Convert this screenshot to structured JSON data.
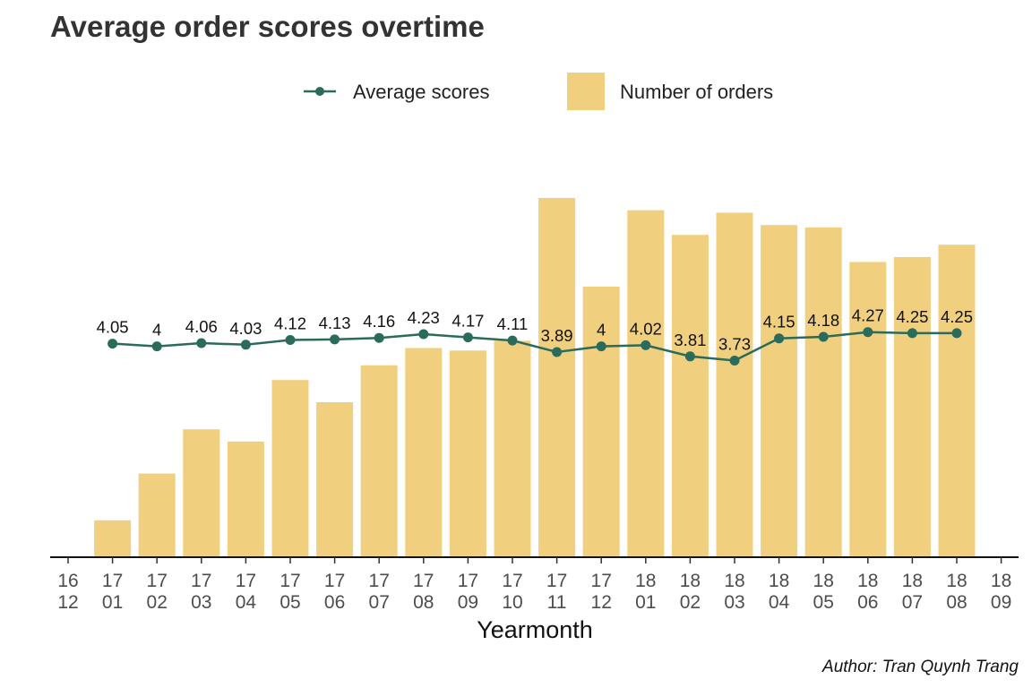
{
  "chart_data": {
    "type": "bar",
    "title": "Average order scores overtime",
    "xlabel": "Yearmonth",
    "ylabel": "",
    "caption": "Author: Tran Quynh Trang",
    "legend_position": "top",
    "grid": false,
    "x_ticks": [
      {
        "top": "16",
        "bottom": "12"
      },
      {
        "top": "17",
        "bottom": "01"
      },
      {
        "top": "17",
        "bottom": "02"
      },
      {
        "top": "17",
        "bottom": "03"
      },
      {
        "top": "17",
        "bottom": "04"
      },
      {
        "top": "17",
        "bottom": "05"
      },
      {
        "top": "17",
        "bottom": "06"
      },
      {
        "top": "17",
        "bottom": "07"
      },
      {
        "top": "17",
        "bottom": "08"
      },
      {
        "top": "17",
        "bottom": "09"
      },
      {
        "top": "17",
        "bottom": "10"
      },
      {
        "top": "17",
        "bottom": "11"
      },
      {
        "top": "17",
        "bottom": "12"
      },
      {
        "top": "18",
        "bottom": "01"
      },
      {
        "top": "18",
        "bottom": "02"
      },
      {
        "top": "18",
        "bottom": "03"
      },
      {
        "top": "18",
        "bottom": "04"
      },
      {
        "top": "18",
        "bottom": "05"
      },
      {
        "top": "18",
        "bottom": "06"
      },
      {
        "top": "18",
        "bottom": "07"
      },
      {
        "top": "18",
        "bottom": "08"
      },
      {
        "top": "18",
        "bottom": "09"
      }
    ],
    "categories": [
      "17 01",
      "17 02",
      "17 03",
      "17 04",
      "17 05",
      "17 06",
      "17 07",
      "17 08",
      "17 09",
      "17 10",
      "17 11",
      "17 12",
      "18 01",
      "18 02",
      "18 03",
      "18 04",
      "18 05",
      "18 06",
      "18 07",
      "18 08"
    ],
    "series": [
      {
        "name": "Number of orders",
        "type": "bar",
        "color": "#F0CF7F",
        "values": [
          750,
          1700,
          2600,
          2350,
          3600,
          3150,
          3900,
          4250,
          4200,
          4400,
          7300,
          5500,
          7050,
          6550,
          7000,
          6750,
          6700,
          6000,
          6100,
          6350
        ]
      },
      {
        "name": "Average scores",
        "type": "line",
        "color": "#2A6B5B",
        "values": [
          4.05,
          4,
          4.06,
          4.03,
          4.12,
          4.13,
          4.16,
          4.23,
          4.17,
          4.11,
          3.89,
          4,
          4.02,
          3.81,
          3.73,
          4.15,
          4.18,
          4.27,
          4.25,
          4.25
        ],
        "labels": [
          "4.05",
          "4",
          "4.06",
          "4.03",
          "4.12",
          "4.13",
          "4.16",
          "4.23",
          "4.17",
          "4.11",
          "3.89",
          "4",
          "4.02",
          "3.81",
          "3.73",
          "4.15",
          "4.18",
          "4.27",
          "4.25",
          "4.25"
        ]
      }
    ],
    "bar_ylim": [
      0,
      7500
    ],
    "line_ylim": [
      0,
      7.0
    ]
  }
}
